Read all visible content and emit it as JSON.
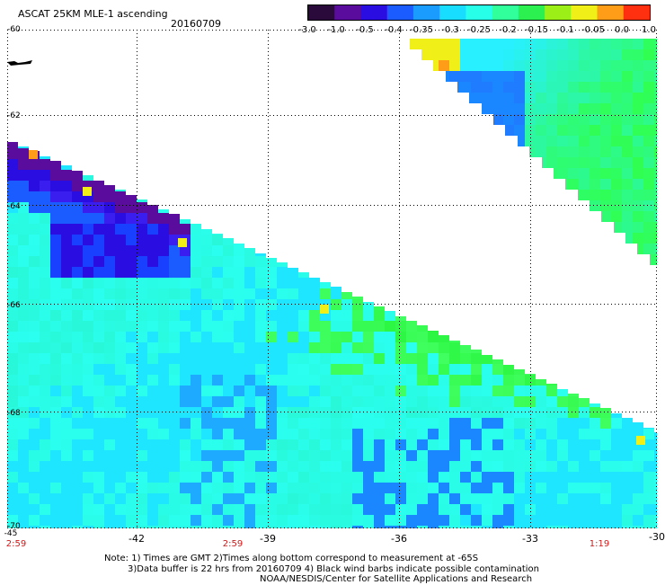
{
  "header": {
    "title": "ASCAT 25KM MLE-1 ascending",
    "date": "20160709"
  },
  "colorbar": {
    "tick_labels": [
      "-3.0",
      "-1.0",
      "-0.5",
      "-0.4",
      "-0.35",
      "-0.3",
      "-0.25",
      "-0.2",
      "-0.15",
      "-0.1",
      "-0.05",
      "0.0",
      "1.0"
    ],
    "colors": [
      "#2a0a3a",
      "#5a0d9c",
      "#2a0de0",
      "#1a5cff",
      "#1a9cff",
      "#18ddff",
      "#28ffe8",
      "#30ff9c",
      "#2cf050",
      "#9cf018",
      "#f0f018",
      "#ff9c18",
      "#ff3010"
    ]
  },
  "map": {
    "lat_labels": [
      "-60",
      "-62",
      "-64",
      "-66",
      "-68",
      "-70"
    ],
    "lon_labels": [
      "-45",
      "-42",
      "-39",
      "-36",
      "-33",
      "-30"
    ],
    "time_labels": [
      "2:59",
      "2:59",
      "1:19"
    ]
  },
  "notes": {
    "line1": "Note: 1) Times are GMT 2)Times along bottom correspond to measurement at -65S",
    "line2": "3)Data buffer is 22 hrs from 20160709 4) Black wind barbs indicate possible contamination",
    "line3": "NOAA/NESDIS/Center for Satellite Applications and Research"
  }
}
